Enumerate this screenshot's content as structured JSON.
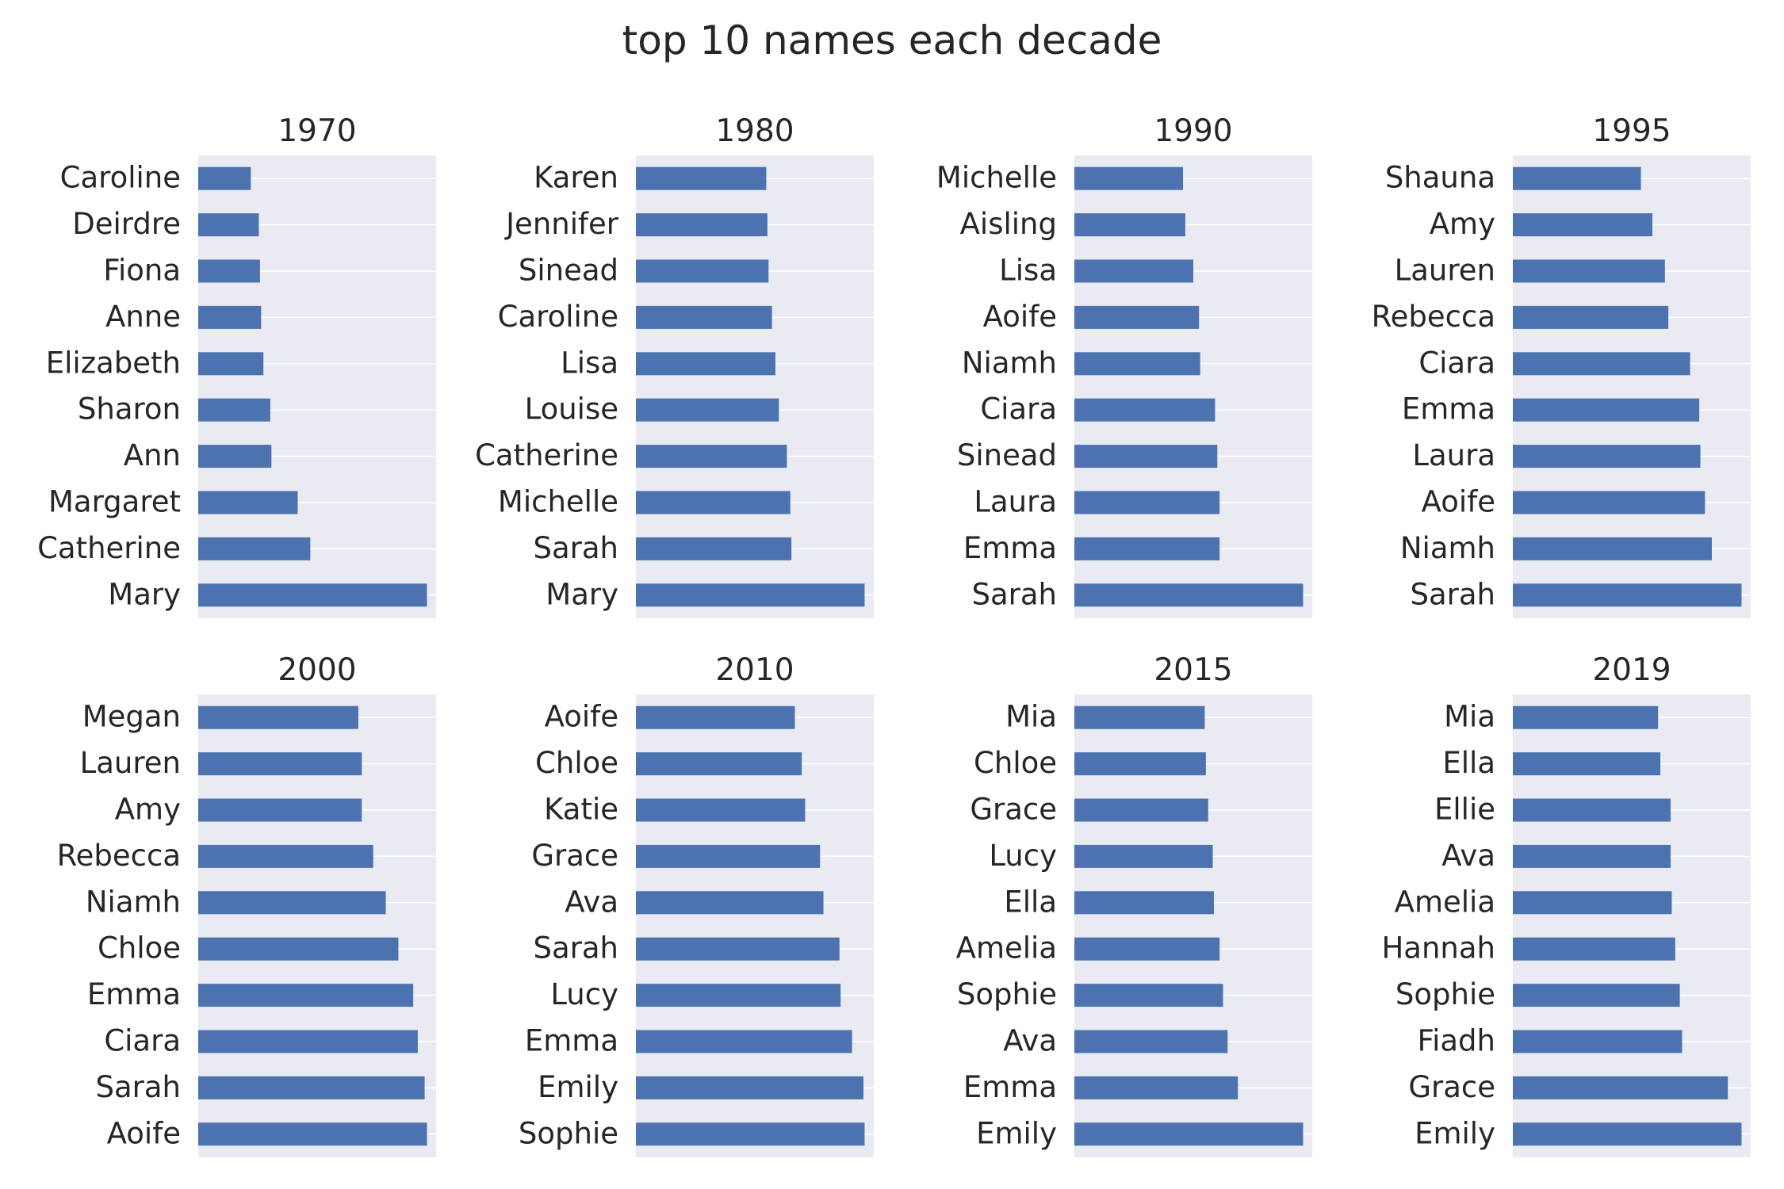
{
  "title": "top 10 names each decade",
  "colors": {
    "bar": "#4c72b0",
    "panel_bg": "#eaeaf2",
    "grid": "#ffffff",
    "text": "#262626"
  },
  "chart_data": [
    {
      "type": "bar",
      "orientation": "horizontal",
      "title": "1970",
      "grid": true,
      "categories": [
        "Caroline",
        "Deirdre",
        "Fiona",
        "Anne",
        "Elizabeth",
        "Sharon",
        "Ann",
        "Margaret",
        "Catherine",
        "Mary"
      ],
      "values": [
        23,
        26.5,
        27,
        27.5,
        28.5,
        31.5,
        32,
        43.5,
        49,
        100
      ]
    },
    {
      "type": "bar",
      "orientation": "horizontal",
      "title": "1980",
      "grid": true,
      "categories": [
        "Karen",
        "Jennifer",
        "Sinead",
        "Caroline",
        "Lisa",
        "Louise",
        "Catherine",
        "Michelle",
        "Sarah",
        "Mary"
      ],
      "values": [
        57,
        57.5,
        58,
        59.5,
        61,
        62.5,
        66,
        67.5,
        68,
        100
      ]
    },
    {
      "type": "bar",
      "orientation": "horizontal",
      "title": "1990",
      "grid": true,
      "categories": [
        "Michelle",
        "Aisling",
        "Lisa",
        "Aoife",
        "Niamh",
        "Ciara",
        "Sinead",
        "Laura",
        "Emma",
        "Sarah"
      ],
      "values": [
        47.5,
        48.5,
        52,
        54.5,
        55,
        61.5,
        62.5,
        63.5,
        63.5,
        100
      ]
    },
    {
      "type": "bar",
      "orientation": "horizontal",
      "title": "1995",
      "grid": true,
      "categories": [
        "Shauna",
        "Amy",
        "Lauren",
        "Rebecca",
        "Ciara",
        "Emma",
        "Laura",
        "Aoife",
        "Niamh",
        "Sarah"
      ],
      "values": [
        56,
        61,
        66.5,
        68,
        77.5,
        81.5,
        82,
        84,
        87,
        100
      ]
    },
    {
      "type": "bar",
      "orientation": "horizontal",
      "title": "2000",
      "grid": true,
      "categories": [
        "Megan",
        "Lauren",
        "Amy",
        "Rebecca",
        "Niamh",
        "Chloe",
        "Emma",
        "Ciara",
        "Sarah",
        "Aoife"
      ],
      "values": [
        70,
        71.5,
        71.5,
        76.5,
        82,
        87.5,
        94,
        96,
        99,
        100
      ]
    },
    {
      "type": "bar",
      "orientation": "horizontal",
      "title": "2010",
      "grid": true,
      "categories": [
        "Aoife",
        "Chloe",
        "Katie",
        "Grace",
        "Ava",
        "Sarah",
        "Lucy",
        "Emma",
        "Emily",
        "Sophie"
      ],
      "values": [
        69.5,
        72.5,
        74,
        80.5,
        82,
        89,
        89.5,
        94.5,
        99.5,
        100
      ]
    },
    {
      "type": "bar",
      "orientation": "horizontal",
      "title": "2015",
      "grid": true,
      "categories": [
        "Mia",
        "Chloe",
        "Grace",
        "Lucy",
        "Ella",
        "Amelia",
        "Sophie",
        "Ava",
        "Emma",
        "Emily"
      ],
      "values": [
        57,
        57.5,
        58.5,
        60.5,
        61,
        63.5,
        65,
        67,
        71.5,
        100
      ]
    },
    {
      "type": "bar",
      "orientation": "horizontal",
      "title": "2019",
      "grid": true,
      "categories": [
        "Mia",
        "Ella",
        "Ellie",
        "Ava",
        "Amelia",
        "Hannah",
        "Sophie",
        "Fiadh",
        "Grace",
        "Emily"
      ],
      "values": [
        63.5,
        64.5,
        69,
        69,
        69.5,
        71,
        73,
        74,
        94,
        100
      ]
    }
  ]
}
